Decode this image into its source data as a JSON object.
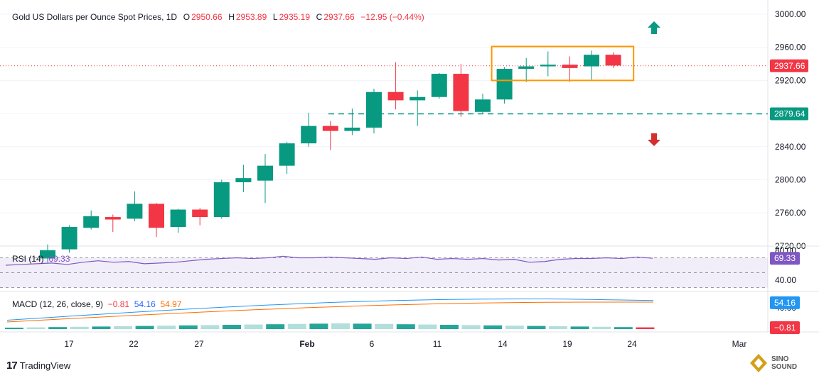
{
  "header": {
    "title": "Gold US Dollars per Ounce Spot Prices, 1D",
    "open_label": "O",
    "open": "2950.66",
    "high_label": "H",
    "high": "2953.89",
    "low_label": "L",
    "low": "2935.19",
    "close_label": "C",
    "close": "2937.66",
    "change": "−12.95 (−0.44%)"
  },
  "colors": {
    "up": "#089981",
    "down": "#f23645",
    "rsi": "#7e57c2",
    "macd": "#2196f3",
    "signal": "#ff6d00",
    "support": "#089981",
    "box": "#ff9800",
    "price_line": "#f23645"
  },
  "chart_data": {
    "type": "candlestick",
    "y_ticks": [
      "3000.00",
      "2960.00",
      "2920.00",
      "2880.00",
      "2840.00",
      "2800.00",
      "2760.00",
      "2720.00"
    ],
    "x_ticks": [
      "17",
      "22",
      "27",
      "Feb",
      "6",
      "11",
      "14",
      "19",
      "24",
      "Mar"
    ],
    "candles": [
      {
        "o": 2705,
        "h": 2722,
        "l": 2700,
        "c": 2715
      },
      {
        "o": 2716,
        "h": 2745,
        "l": 2712,
        "c": 2743
      },
      {
        "o": 2742,
        "h": 2763,
        "l": 2740,
        "c": 2756
      },
      {
        "o": 2755,
        "h": 2758,
        "l": 2737,
        "c": 2752
      },
      {
        "o": 2753,
        "h": 2786,
        "l": 2750,
        "c": 2771
      },
      {
        "o": 2771,
        "h": 2772,
        "l": 2731,
        "c": 2742
      },
      {
        "o": 2743,
        "h": 2765,
        "l": 2736,
        "c": 2764
      },
      {
        "o": 2764,
        "h": 2766,
        "l": 2745,
        "c": 2755
      },
      {
        "o": 2755,
        "h": 2800,
        "l": 2753,
        "c": 2797
      },
      {
        "o": 2797,
        "h": 2818,
        "l": 2785,
        "c": 2802
      },
      {
        "o": 2799,
        "h": 2831,
        "l": 2772,
        "c": 2817
      },
      {
        "o": 2817,
        "h": 2846,
        "l": 2807,
        "c": 2844
      },
      {
        "o": 2844,
        "h": 2881,
        "l": 2840,
        "c": 2865
      },
      {
        "o": 2865,
        "h": 2871,
        "l": 2836,
        "c": 2859
      },
      {
        "o": 2859,
        "h": 2886,
        "l": 2854,
        "c": 2863
      },
      {
        "o": 2863,
        "h": 2910,
        "l": 2856,
        "c": 2906
      },
      {
        "o": 2906,
        "h": 2942,
        "l": 2885,
        "c": 2896
      },
      {
        "o": 2896,
        "h": 2908,
        "l": 2865,
        "c": 2900
      },
      {
        "o": 2900,
        "h": 2929,
        "l": 2898,
        "c": 2928
      },
      {
        "o": 2928,
        "h": 2940,
        "l": 2876,
        "c": 2883
      },
      {
        "o": 2882,
        "h": 2904,
        "l": 2880,
        "c": 2897
      },
      {
        "o": 2897,
        "h": 2936,
        "l": 2892,
        "c": 2934
      },
      {
        "o": 2934,
        "h": 2947,
        "l": 2918,
        "c": 2937
      },
      {
        "o": 2937,
        "h": 2955,
        "l": 2925,
        "c": 2939
      },
      {
        "o": 2939,
        "h": 2949,
        "l": 2918,
        "c": 2935
      },
      {
        "o": 2937,
        "h": 2956,
        "l": 2921,
        "c": 2951
      },
      {
        "o": 2951,
        "h": 2954,
        "l": 2935,
        "c": 2938
      }
    ],
    "current_price": "2937.66",
    "support_level": "2879.64",
    "ylim": [
      2715,
      3010
    ],
    "consolidation_box": {
      "price_top": 2961,
      "price_bottom": 2920,
      "from_candle": 21,
      "to_candle": 27
    }
  },
  "rsi": {
    "label": "RSI (14)",
    "value": "69.33",
    "ticks": [
      "80.00",
      "40.00"
    ],
    "values": [
      60,
      61,
      62,
      63,
      61,
      64,
      66,
      64,
      65,
      62,
      63,
      64,
      66,
      68,
      69,
      70,
      69,
      70,
      72,
      70,
      70,
      71,
      70,
      69,
      68,
      70,
      69,
      71,
      68,
      69,
      68,
      69,
      67,
      68,
      64,
      65,
      68,
      69,
      69,
      70,
      69,
      71,
      69.33
    ]
  },
  "macd": {
    "label": "MACD (12, 26, close, 9)",
    "hist": "−0.81",
    "macd": "54.16",
    "signal": "54.97",
    "tick": "40.00"
  },
  "brand": {
    "name": "TradingView"
  },
  "watermark": {
    "name": "SINO SOUND"
  }
}
